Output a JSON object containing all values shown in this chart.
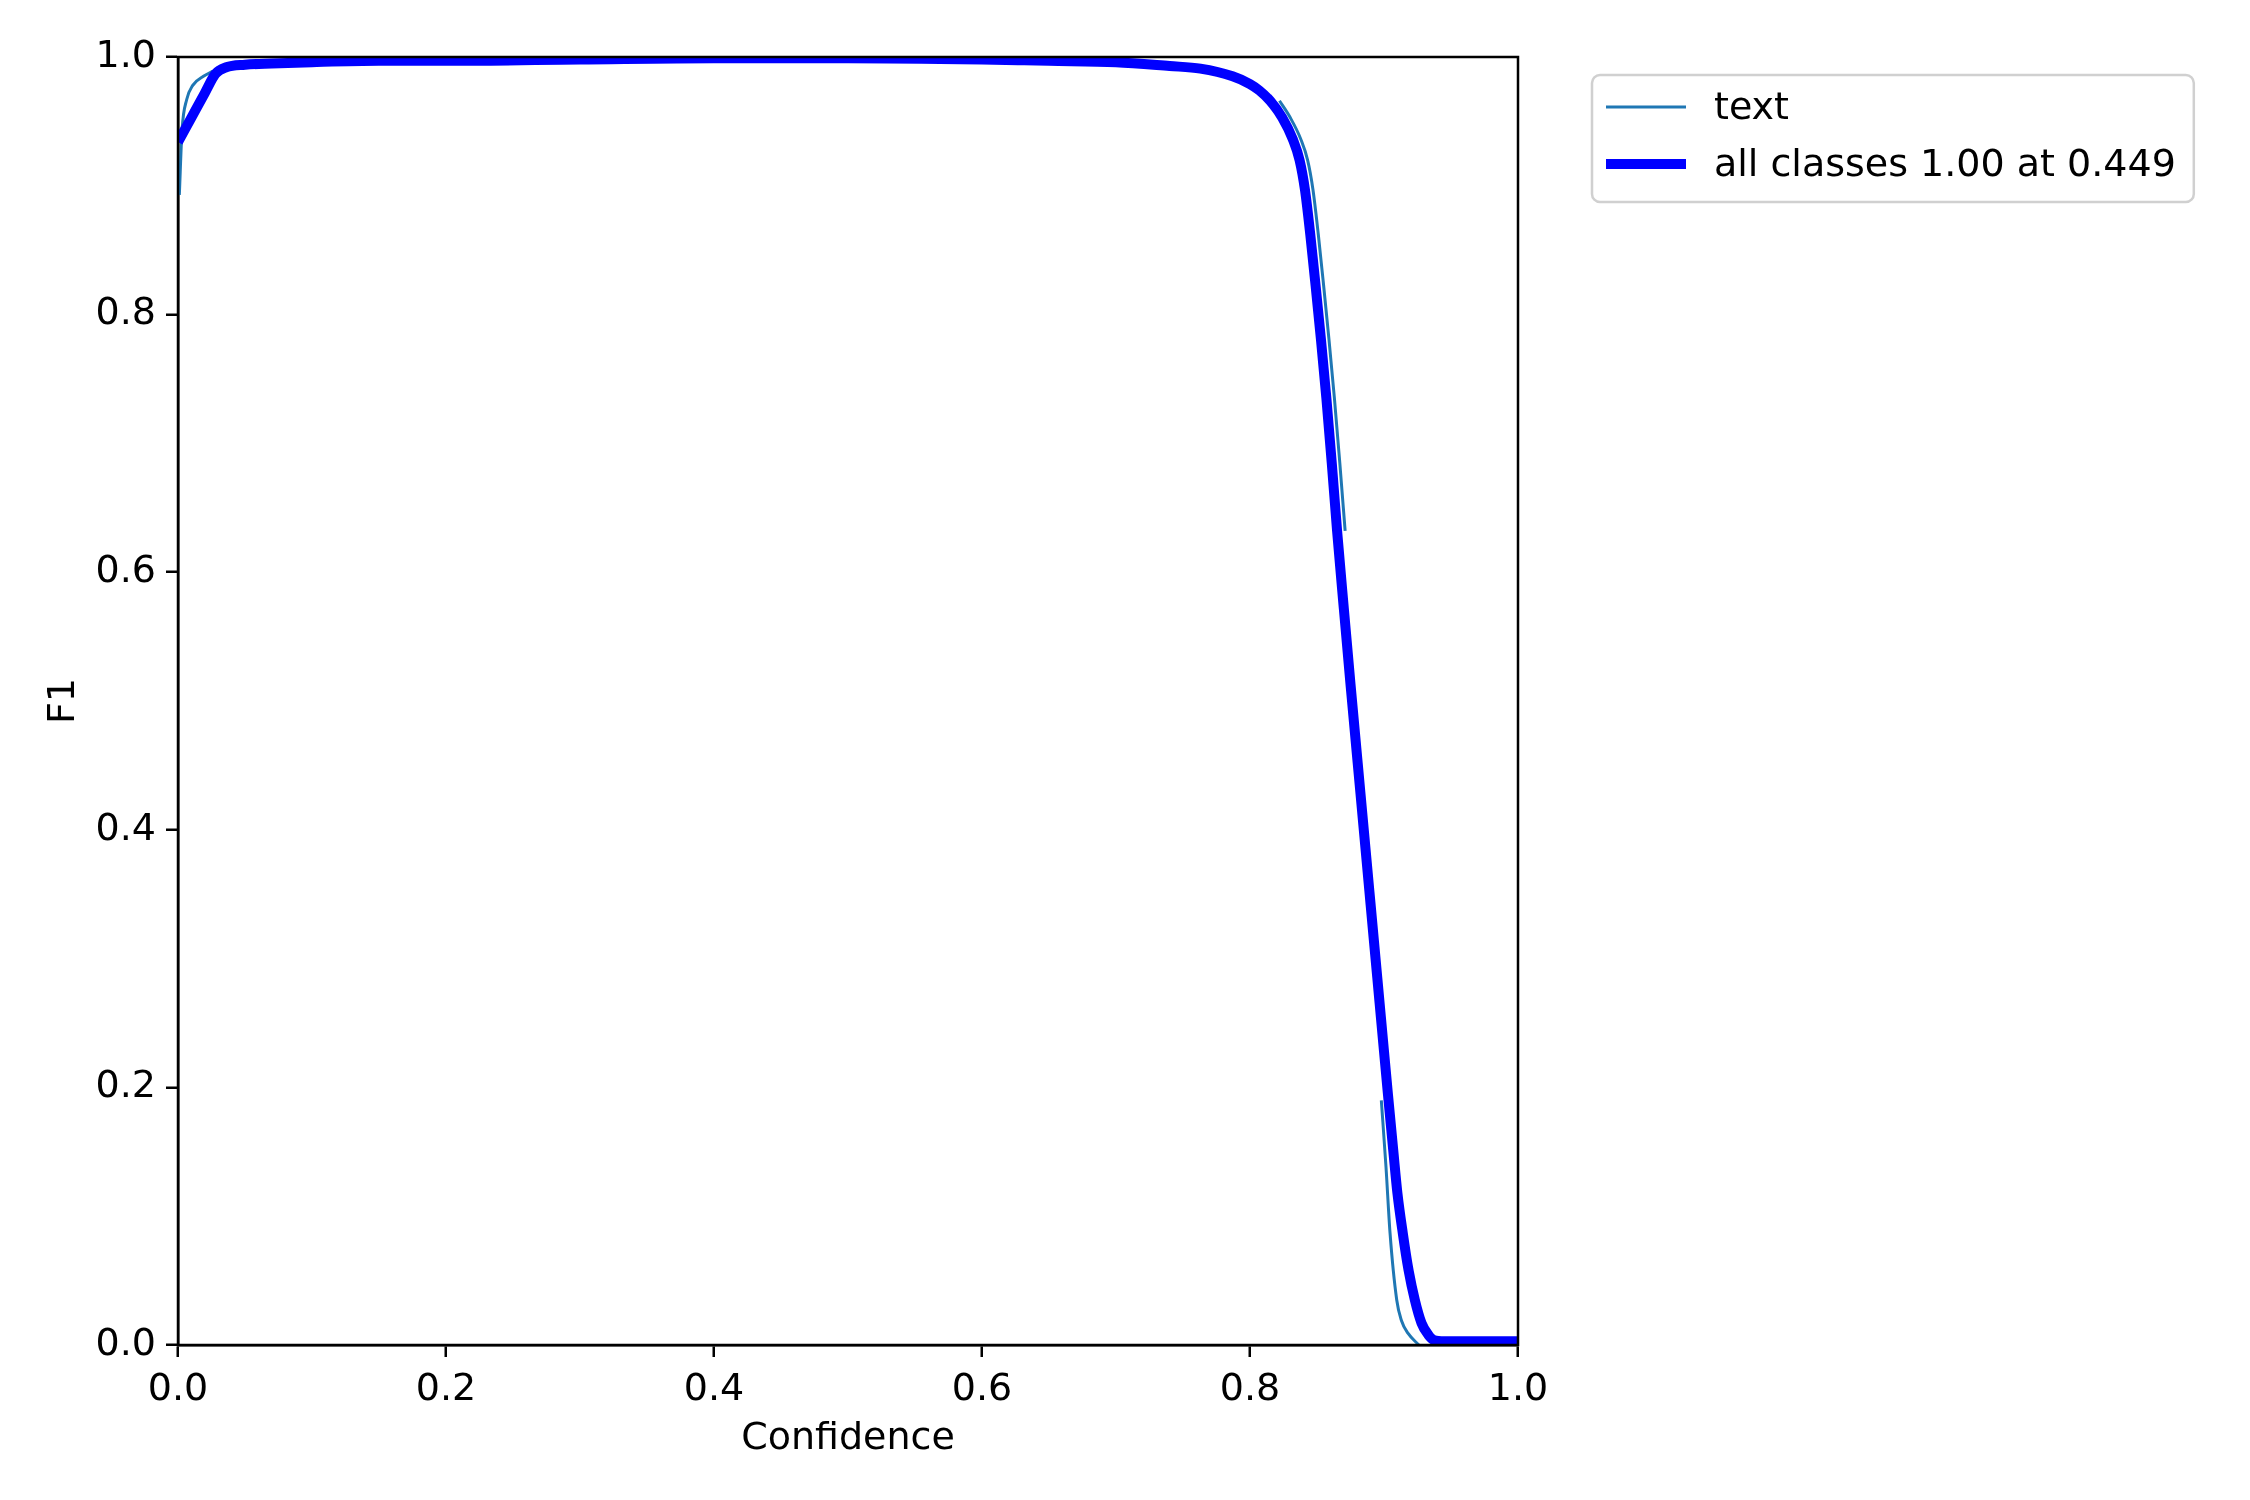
{
  "chart_data": {
    "type": "line",
    "xlabel": "Confidence",
    "ylabel": "F1",
    "xlim": [
      0,
      1
    ],
    "ylim": [
      0,
      1
    ],
    "xticks": [
      {
        "value": 0,
        "label": "0.0"
      },
      {
        "value": 0.2,
        "label": "0.2"
      },
      {
        "value": 0.4,
        "label": "0.4"
      },
      {
        "value": 0.6,
        "label": "0.6"
      },
      {
        "value": 0.8,
        "label": "0.8"
      },
      {
        "value": 1,
        "label": "1.0"
      }
    ],
    "yticks": [
      {
        "value": 0,
        "label": "0.0"
      },
      {
        "value": 0.2,
        "label": "0.2"
      },
      {
        "value": 0.4,
        "label": "0.4"
      },
      {
        "value": 0.6,
        "label": "0.6"
      },
      {
        "value": 0.8,
        "label": "0.8"
      },
      {
        "value": 1,
        "label": "1.0"
      }
    ],
    "grid": false,
    "legend": "top right",
    "marker": "none",
    "line_style": "solid",
    "series": [
      {
        "name": "text",
        "color": "#1f77b4",
        "x": [
          0.001,
          0.003,
          0.0065,
          0.011,
          0.019,
          0.026,
          0.45,
          0.822,
          0.83,
          0.838,
          0.843,
          0.847,
          0.851,
          0.855,
          0.859,
          0.863,
          0.867,
          0.871,
          0.884,
          0.898,
          0.9015,
          0.9045,
          0.9095,
          0.913,
          0.918,
          0.926
        ],
        "values": [
          0.893,
          0.943,
          0.967,
          0.978,
          0.985,
          0.989,
          null,
          0.966,
          0.953,
          0.936,
          0.92,
          0.897,
          0.862,
          0.822,
          0.78,
          0.735,
          0.685,
          0.632,
          null,
          0.19,
          0.138,
          0.087,
          0.035,
          0.019,
          0.009,
          0
        ]
      },
      {
        "name": "all classes 1.00 at 0.449",
        "color": "#0000ff",
        "x": [
          0,
          0.01,
          0.02,
          0.028,
          0.036,
          0.05,
          0.07,
          0.1,
          0.15,
          0.2,
          0.3,
          0.4,
          0.449,
          0.5,
          0.6,
          0.65,
          0.7,
          0.74,
          0.763,
          0.787,
          0.8,
          0.807,
          0.815,
          0.824,
          0.832,
          0.837,
          0.841,
          0.845,
          0.849,
          0.853,
          0.857,
          0.861,
          0.865,
          0.87,
          0.875,
          0.88,
          0.885,
          0.89,
          0.895,
          0.9,
          0.903,
          0.907,
          0.91,
          0.914,
          0.918,
          0.923,
          0.928,
          0.933,
          0.937,
          0.945,
          1.0
        ],
        "values": [
          0.934,
          0.953,
          0.972,
          0.987,
          0.992,
          0.994,
          0.995,
          0.996,
          0.997,
          0.997,
          0.998,
          0.999,
          0.999,
          0.999,
          0.998,
          0.997,
          0.996,
          0.993,
          0.991,
          0.985,
          0.979,
          0.974,
          0.966,
          0.953,
          0.936,
          0.92,
          0.897,
          0.862,
          0.822,
          0.78,
          0.735,
          0.685,
          0.632,
          0.572,
          0.513,
          0.456,
          0.399,
          0.342,
          0.285,
          0.228,
          0.194,
          0.15,
          0.118,
          0.087,
          0.06,
          0.035,
          0.017,
          0.008,
          0.004,
          0.003,
          0.003
        ]
      }
    ]
  }
}
